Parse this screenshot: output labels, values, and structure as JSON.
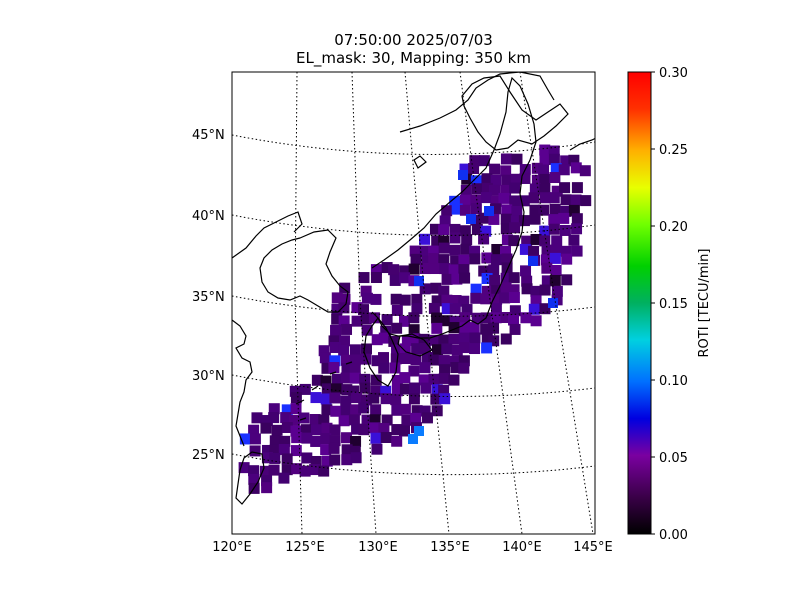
{
  "title": {
    "line1": "07:50:00 2025/07/03",
    "line2": "EL_mask: 30, Mapping: 350 km"
  },
  "map": {
    "lat_labels": [
      "45°N",
      "40°N",
      "35°N",
      "30°N",
      "25°N"
    ],
    "lon_labels": [
      "120°E",
      "125°E",
      "130°E",
      "135°E",
      "140°E",
      "145°E"
    ],
    "gridline_style": "dotted",
    "coastline_color": "#000000"
  },
  "colorbar": {
    "label": "ROTI [TECU/min]",
    "min": 0.0,
    "max": 0.3,
    "ticks": [
      "0.00",
      "0.05",
      "0.10",
      "0.15",
      "0.20",
      "0.25",
      "0.30"
    ],
    "colormap": "nipy_spectral-like (black → purple → blue → cyan → green → yellow → red)"
  },
  "chart_data": {
    "type": "heatmap",
    "title": "07:50:00 2025/07/03\nEL_mask: 30, Mapping: 350 km",
    "colorbar_label": "ROTI [TECU/min]",
    "value_range": [
      0.0,
      0.3
    ],
    "lon_range": [
      120,
      145
    ],
    "lat_range": [
      20,
      48
    ],
    "typical_value": 0.04,
    "max_observed_value": 0.08
  }
}
